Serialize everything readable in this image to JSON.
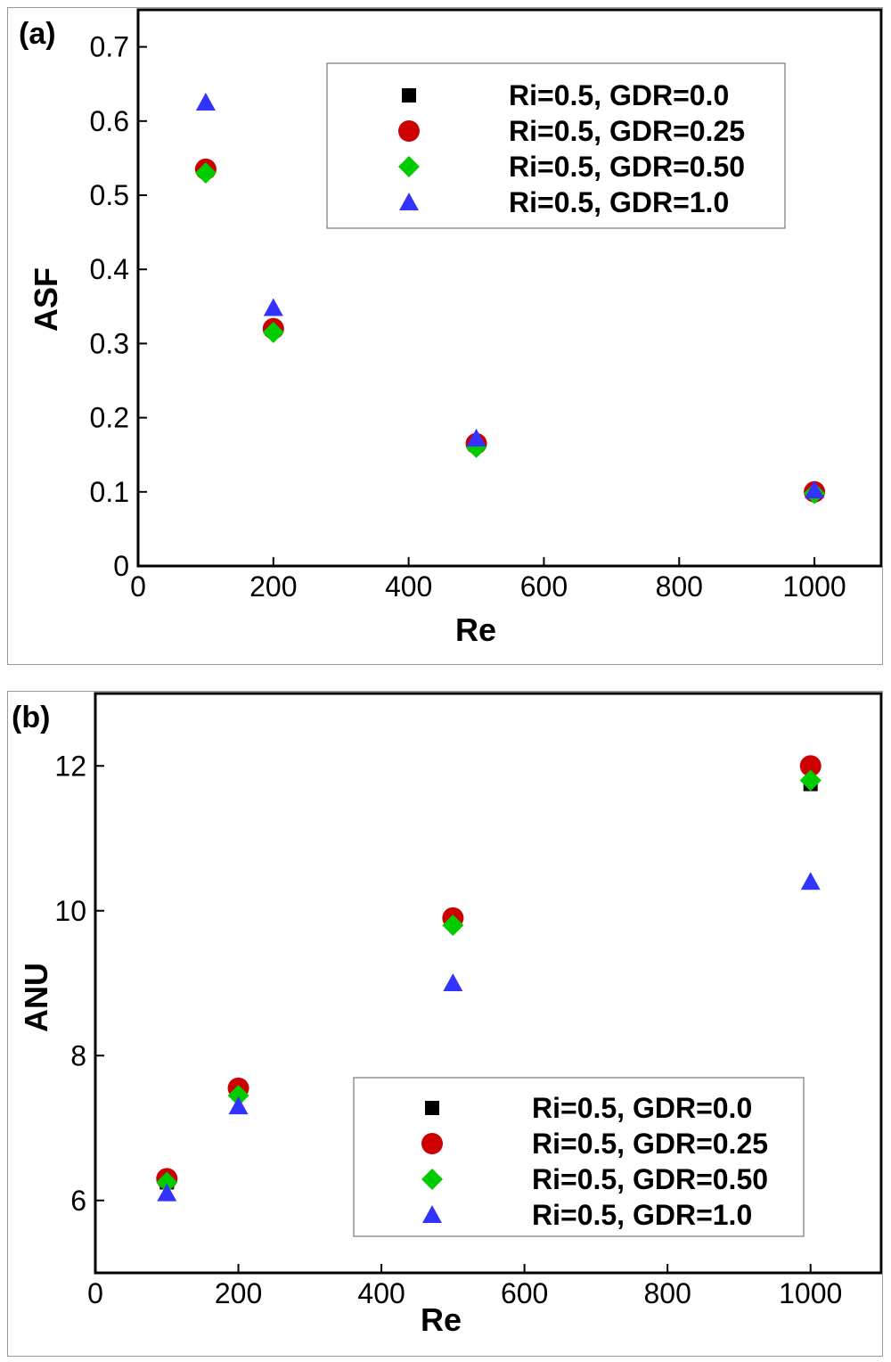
{
  "colors": {
    "GDR0": "#000000",
    "GDR025": "#cc0000",
    "GDR050": "#00cc00",
    "GDR1": "#3333ff"
  },
  "chart_data": [
    {
      "type": "scatter",
      "panel_label": "(a)",
      "xlabel": "Re",
      "ylabel": "ASF",
      "xlim": [
        0,
        1100
      ],
      "ylim": [
        0,
        0.75
      ],
      "xticks": [
        "0",
        "200",
        "400",
        "600",
        "800",
        "1000"
      ],
      "yticks": [
        "0",
        "0.1",
        "0.2",
        "0.3",
        "0.4",
        "0.5",
        "0.6",
        "0.7"
      ],
      "legend_position": "top-right",
      "grid": false,
      "x": [
        100,
        200,
        500,
        1000
      ],
      "series": [
        {
          "name": "Ri=0.5, GDR=0.0",
          "marker": "square",
          "color": "#000000",
          "values": [
            0.535,
            0.32,
            0.165,
            0.1
          ]
        },
        {
          "name": "Ri=0.5, GDR=0.25",
          "marker": "circle",
          "color": "#cc0000",
          "values": [
            0.535,
            0.32,
            0.165,
            0.1
          ]
        },
        {
          "name": "Ri=0.5, GDR=0.50",
          "marker": "diamond",
          "color": "#00cc00",
          "values": [
            0.53,
            0.315,
            0.16,
            0.098
          ]
        },
        {
          "name": "Ri=0.5, GDR=1.0",
          "marker": "triangle",
          "color": "#3333ff",
          "values": [
            0.625,
            0.348,
            0.172,
            0.102
          ]
        }
      ]
    },
    {
      "type": "scatter",
      "panel_label": "(b)",
      "xlabel": "Re",
      "ylabel": "ANU",
      "xlim": [
        0,
        1100
      ],
      "ylim": [
        5,
        13
      ],
      "xticks": [
        "0",
        "200",
        "400",
        "600",
        "800",
        "1000"
      ],
      "yticks": [
        "6",
        "8",
        "10",
        "12"
      ],
      "legend_position": "bottom-right",
      "grid": false,
      "x": [
        100,
        200,
        500,
        1000
      ],
      "series": [
        {
          "name": "Ri=0.5, GDR=0.0",
          "marker": "square",
          "color": "#000000",
          "values": [
            6.25,
            7.5,
            9.85,
            11.75
          ]
        },
        {
          "name": "Ri=0.5, GDR=0.25",
          "marker": "circle",
          "color": "#cc0000",
          "values": [
            6.3,
            7.55,
            9.9,
            12.0
          ]
        },
        {
          "name": "Ri=0.5, GDR=0.50",
          "marker": "diamond",
          "color": "#00cc00",
          "values": [
            6.25,
            7.45,
            9.8,
            11.8
          ]
        },
        {
          "name": "Ri=0.5, GDR=1.0",
          "marker": "triangle",
          "color": "#3333ff",
          "values": [
            6.1,
            7.3,
            9.0,
            10.4
          ]
        }
      ]
    }
  ]
}
